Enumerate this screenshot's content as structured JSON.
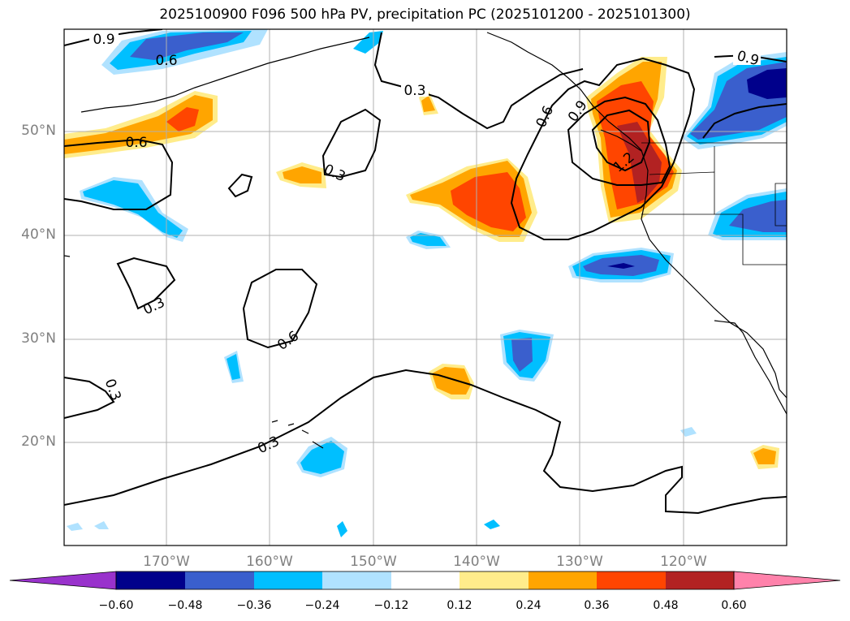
{
  "title": "2025100900 F096 500 hPa PV, precipitation PC (2025101200 - 2025101300)",
  "lat_labels": [
    "50°N",
    "40°N",
    "30°N",
    "20°N"
  ],
  "lon_labels": [
    "170°W",
    "160°W",
    "150°W",
    "140°W",
    "130°W",
    "120°W"
  ],
  "colorbar": {
    "ticks": [
      "−0.60",
      "−0.48",
      "−0.36",
      "−0.24",
      "−0.12",
      "0.12",
      "0.24",
      "0.36",
      "0.48",
      "0.60"
    ],
    "colors": [
      "#9932cc",
      "#00008b",
      "#3a5fcd",
      "#00bfff",
      "#b0e2ff",
      "#ffffff",
      "#ffec8b",
      "#ffa500",
      "#ff4500",
      "#b22222",
      "#ff82ab"
    ]
  },
  "contour_labels": [
    "0.9",
    "0.6",
    "0.6",
    "0.3",
    "0.3",
    "0.6",
    "0.9",
    "1.2",
    "0.9",
    "0.3",
    "0.6",
    "0.3",
    "0.3"
  ],
  "colors": {
    "grid": "#b0b0b0",
    "coast": "#000000",
    "contour": "#000000",
    "axis_label": "#808080"
  }
}
